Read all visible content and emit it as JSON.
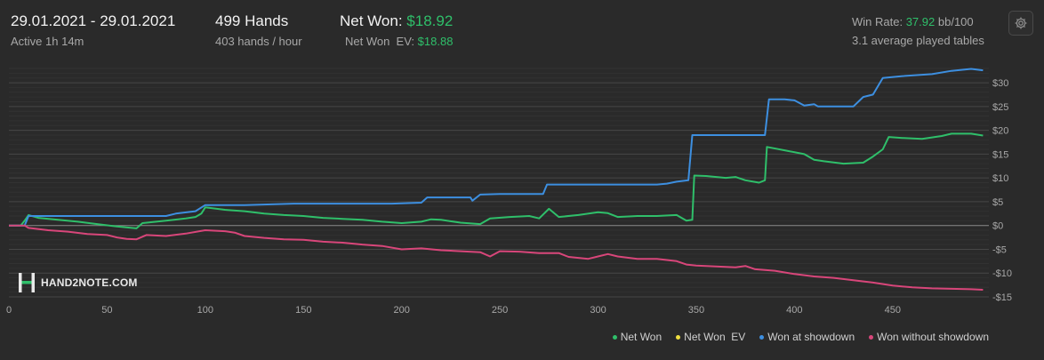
{
  "header": {
    "date_range": "29.01.2021 - 29.01.2021",
    "active": "Active 1h 14m",
    "hands": "499 Hands",
    "hands_rate": "403 hands / hour",
    "net_won_label": "Net Won:",
    "net_won_value": "$18.92",
    "net_won_ev_label": "Net Won  EV:",
    "net_won_ev_value": "$18.88",
    "win_rate_label": "Win Rate:",
    "win_rate_value": "37.92",
    "win_rate_unit": "bb/100",
    "tables": "3.1 average played tables"
  },
  "logo_text": "HAND2NOTE.COM",
  "colors": {
    "net_won": "#2fbf6a",
    "net_won_ev": "#f0e040",
    "showdown": "#3d8fe0",
    "non_showdown": "#d8467a",
    "background": "#2a2a2a",
    "grid": "#3b3b3b",
    "zero_line": "#8a8a8a"
  },
  "chart_data": {
    "type": "line",
    "xlim": [
      0,
      499
    ],
    "ylim": [
      -15,
      33
    ],
    "x_ticks": [
      0,
      50,
      100,
      150,
      200,
      250,
      300,
      350,
      400,
      450
    ],
    "x_tick_labels": [
      "0",
      "50",
      "100",
      "150",
      "200",
      "250",
      "300",
      "350",
      "400",
      "450"
    ],
    "y_ticks": [
      30,
      25,
      20,
      15,
      10,
      5,
      0,
      -5,
      -10,
      -15
    ],
    "y_tick_labels": [
      "$30",
      "$25",
      "$20",
      "$15",
      "$10",
      "$5",
      "$0",
      "-$5",
      "-$10",
      "-$15"
    ],
    "legend_position": "bottom-right",
    "series": [
      {
        "name": "Net Won",
        "color": "#2fbf6a",
        "points": [
          [
            0,
            0
          ],
          [
            6,
            0
          ],
          [
            8,
            1
          ],
          [
            10,
            2.2
          ],
          [
            15,
            1.6
          ],
          [
            25,
            1.2
          ],
          [
            35,
            0.8
          ],
          [
            45,
            0.3
          ],
          [
            55,
            -0.2
          ],
          [
            65,
            -0.6
          ],
          [
            68,
            0.5
          ],
          [
            80,
            1
          ],
          [
            90,
            1.5
          ],
          [
            95,
            1.8
          ],
          [
            98,
            2.5
          ],
          [
            100,
            3.8
          ],
          [
            110,
            3.3
          ],
          [
            120,
            3
          ],
          [
            130,
            2.5
          ],
          [
            140,
            2.2
          ],
          [
            150,
            2
          ],
          [
            160,
            1.6
          ],
          [
            170,
            1.4
          ],
          [
            180,
            1.2
          ],
          [
            190,
            0.8
          ],
          [
            200,
            0.5
          ],
          [
            210,
            0.8
          ],
          [
            215,
            1.3
          ],
          [
            220,
            1.2
          ],
          [
            230,
            0.6
          ],
          [
            240,
            0.3
          ],
          [
            245,
            1.5
          ],
          [
            255,
            1.8
          ],
          [
            265,
            2
          ],
          [
            270,
            1.5
          ],
          [
            275,
            3.5
          ],
          [
            280,
            1.8
          ],
          [
            290,
            2.2
          ],
          [
            300,
            2.8
          ],
          [
            305,
            2.6
          ],
          [
            310,
            1.8
          ],
          [
            320,
            2
          ],
          [
            330,
            2
          ],
          [
            340,
            2.2
          ],
          [
            345,
            1
          ],
          [
            348,
            1.2
          ],
          [
            349,
            10.5
          ],
          [
            355,
            10.4
          ],
          [
            365,
            10
          ],
          [
            370,
            10.2
          ],
          [
            375,
            9.5
          ],
          [
            382,
            9
          ],
          [
            385,
            9.5
          ],
          [
            386,
            16.5
          ],
          [
            395,
            15.8
          ],
          [
            405,
            15
          ],
          [
            410,
            13.8
          ],
          [
            415,
            13.5
          ],
          [
            425,
            13
          ],
          [
            435,
            13.2
          ],
          [
            440,
            14.5
          ],
          [
            445,
            16
          ],
          [
            448,
            18.6
          ],
          [
            455,
            18.4
          ],
          [
            465,
            18.2
          ],
          [
            475,
            18.8
          ],
          [
            480,
            19.3
          ],
          [
            490,
            19.3
          ],
          [
            496,
            18.9
          ]
        ]
      },
      {
        "name": "Net Won  EV",
        "color": "#f0e040",
        "points": []
      },
      {
        "name": "Won at showdown",
        "color": "#3d8fe0",
        "points": [
          [
            0,
            0
          ],
          [
            8,
            0
          ],
          [
            10,
            2
          ],
          [
            80,
            2
          ],
          [
            85,
            2.5
          ],
          [
            95,
            3
          ],
          [
            100,
            4.3
          ],
          [
            120,
            4.3
          ],
          [
            145,
            4.6
          ],
          [
            175,
            4.6
          ],
          [
            195,
            4.6
          ],
          [
            210,
            4.8
          ],
          [
            213,
            5.9
          ],
          [
            235,
            5.9
          ],
          [
            236,
            5.2
          ],
          [
            240,
            6.5
          ],
          [
            250,
            6.6
          ],
          [
            272,
            6.6
          ],
          [
            274,
            8.6
          ],
          [
            330,
            8.6
          ],
          [
            335,
            8.8
          ],
          [
            340,
            9.2
          ],
          [
            346,
            9.5
          ],
          [
            348,
            19
          ],
          [
            385,
            19
          ],
          [
            387,
            26.5
          ],
          [
            395,
            26.5
          ],
          [
            400,
            26.3
          ],
          [
            405,
            25.2
          ],
          [
            410,
            25.5
          ],
          [
            412,
            25
          ],
          [
            420,
            25
          ],
          [
            430,
            25
          ],
          [
            435,
            27
          ],
          [
            440,
            27.5
          ],
          [
            445,
            31
          ],
          [
            455,
            31.4
          ],
          [
            470,
            31.8
          ],
          [
            480,
            32.5
          ],
          [
            490,
            32.9
          ],
          [
            496,
            32.6
          ]
        ]
      },
      {
        "name": "Won without showdown",
        "color": "#d8467a",
        "points": [
          [
            0,
            0
          ],
          [
            8,
            0
          ],
          [
            10,
            -0.5
          ],
          [
            20,
            -1
          ],
          [
            30,
            -1.3
          ],
          [
            40,
            -1.8
          ],
          [
            50,
            -2
          ],
          [
            55,
            -2.5
          ],
          [
            60,
            -2.8
          ],
          [
            65,
            -2.9
          ],
          [
            70,
            -2
          ],
          [
            80,
            -2.2
          ],
          [
            90,
            -1.7
          ],
          [
            100,
            -1
          ],
          [
            110,
            -1.2
          ],
          [
            115,
            -1.5
          ],
          [
            120,
            -2.2
          ],
          [
            130,
            -2.6
          ],
          [
            140,
            -2.9
          ],
          [
            150,
            -3
          ],
          [
            160,
            -3.4
          ],
          [
            170,
            -3.6
          ],
          [
            180,
            -4
          ],
          [
            190,
            -4.3
          ],
          [
            200,
            -5
          ],
          [
            210,
            -4.8
          ],
          [
            220,
            -5.2
          ],
          [
            230,
            -5.4
          ],
          [
            240,
            -5.6
          ],
          [
            245,
            -6.5
          ],
          [
            250,
            -5.4
          ],
          [
            260,
            -5.5
          ],
          [
            270,
            -5.8
          ],
          [
            280,
            -5.8
          ],
          [
            285,
            -6.6
          ],
          [
            295,
            -7
          ],
          [
            300,
            -6.5
          ],
          [
            305,
            -6
          ],
          [
            310,
            -6.5
          ],
          [
            320,
            -7
          ],
          [
            330,
            -7
          ],
          [
            340,
            -7.5
          ],
          [
            345,
            -8.2
          ],
          [
            350,
            -8.4
          ],
          [
            360,
            -8.6
          ],
          [
            370,
            -8.8
          ],
          [
            375,
            -8.5
          ],
          [
            380,
            -9.2
          ],
          [
            390,
            -9.5
          ],
          [
            400,
            -10.2
          ],
          [
            410,
            -10.7
          ],
          [
            420,
            -11
          ],
          [
            430,
            -11.5
          ],
          [
            440,
            -12
          ],
          [
            450,
            -12.6
          ],
          [
            460,
            -13
          ],
          [
            470,
            -13.2
          ],
          [
            480,
            -13.3
          ],
          [
            490,
            -13.4
          ],
          [
            496,
            -13.5
          ]
        ]
      }
    ]
  }
}
